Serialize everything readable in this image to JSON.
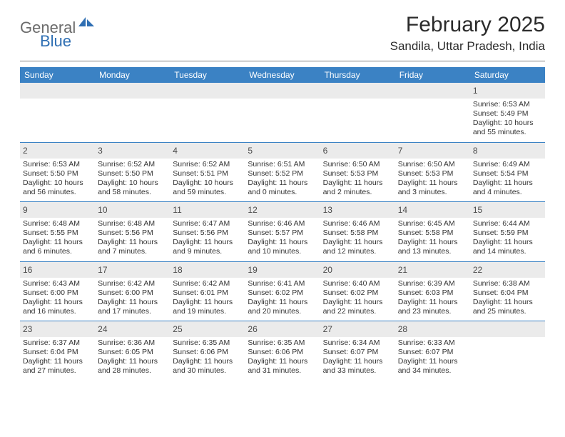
{
  "logo": {
    "word1": "General",
    "word2": "Blue",
    "text_color": "#6b6b6b",
    "accent_color": "#2f6fb3"
  },
  "header": {
    "month_title": "February 2025",
    "location": "Sandila, Uttar Pradesh, India"
  },
  "colors": {
    "header_bar": "#3b82c4",
    "daynum_bg": "#ebebeb",
    "week_divider": "#3b82c4",
    "rule": "#808080",
    "text": "#333333"
  },
  "day_names": [
    "Sunday",
    "Monday",
    "Tuesday",
    "Wednesday",
    "Thursday",
    "Friday",
    "Saturday"
  ],
  "weeks": [
    [
      {
        "blank": true
      },
      {
        "blank": true
      },
      {
        "blank": true
      },
      {
        "blank": true
      },
      {
        "blank": true
      },
      {
        "blank": true
      },
      {
        "day": "1",
        "sunrise": "Sunrise: 6:53 AM",
        "sunset": "Sunset: 5:49 PM",
        "day_a": "Daylight: 10 hours",
        "day_b": "and 55 minutes."
      }
    ],
    [
      {
        "day": "2",
        "sunrise": "Sunrise: 6:53 AM",
        "sunset": "Sunset: 5:50 PM",
        "day_a": "Daylight: 10 hours",
        "day_b": "and 56 minutes."
      },
      {
        "day": "3",
        "sunrise": "Sunrise: 6:52 AM",
        "sunset": "Sunset: 5:50 PM",
        "day_a": "Daylight: 10 hours",
        "day_b": "and 58 minutes."
      },
      {
        "day": "4",
        "sunrise": "Sunrise: 6:52 AM",
        "sunset": "Sunset: 5:51 PM",
        "day_a": "Daylight: 10 hours",
        "day_b": "and 59 minutes."
      },
      {
        "day": "5",
        "sunrise": "Sunrise: 6:51 AM",
        "sunset": "Sunset: 5:52 PM",
        "day_a": "Daylight: 11 hours",
        "day_b": "and 0 minutes."
      },
      {
        "day": "6",
        "sunrise": "Sunrise: 6:50 AM",
        "sunset": "Sunset: 5:53 PM",
        "day_a": "Daylight: 11 hours",
        "day_b": "and 2 minutes."
      },
      {
        "day": "7",
        "sunrise": "Sunrise: 6:50 AM",
        "sunset": "Sunset: 5:53 PM",
        "day_a": "Daylight: 11 hours",
        "day_b": "and 3 minutes."
      },
      {
        "day": "8",
        "sunrise": "Sunrise: 6:49 AM",
        "sunset": "Sunset: 5:54 PM",
        "day_a": "Daylight: 11 hours",
        "day_b": "and 4 minutes."
      }
    ],
    [
      {
        "day": "9",
        "sunrise": "Sunrise: 6:48 AM",
        "sunset": "Sunset: 5:55 PM",
        "day_a": "Daylight: 11 hours",
        "day_b": "and 6 minutes."
      },
      {
        "day": "10",
        "sunrise": "Sunrise: 6:48 AM",
        "sunset": "Sunset: 5:56 PM",
        "day_a": "Daylight: 11 hours",
        "day_b": "and 7 minutes."
      },
      {
        "day": "11",
        "sunrise": "Sunrise: 6:47 AM",
        "sunset": "Sunset: 5:56 PM",
        "day_a": "Daylight: 11 hours",
        "day_b": "and 9 minutes."
      },
      {
        "day": "12",
        "sunrise": "Sunrise: 6:46 AM",
        "sunset": "Sunset: 5:57 PM",
        "day_a": "Daylight: 11 hours",
        "day_b": "and 10 minutes."
      },
      {
        "day": "13",
        "sunrise": "Sunrise: 6:46 AM",
        "sunset": "Sunset: 5:58 PM",
        "day_a": "Daylight: 11 hours",
        "day_b": "and 12 minutes."
      },
      {
        "day": "14",
        "sunrise": "Sunrise: 6:45 AM",
        "sunset": "Sunset: 5:58 PM",
        "day_a": "Daylight: 11 hours",
        "day_b": "and 13 minutes."
      },
      {
        "day": "15",
        "sunrise": "Sunrise: 6:44 AM",
        "sunset": "Sunset: 5:59 PM",
        "day_a": "Daylight: 11 hours",
        "day_b": "and 14 minutes."
      }
    ],
    [
      {
        "day": "16",
        "sunrise": "Sunrise: 6:43 AM",
        "sunset": "Sunset: 6:00 PM",
        "day_a": "Daylight: 11 hours",
        "day_b": "and 16 minutes."
      },
      {
        "day": "17",
        "sunrise": "Sunrise: 6:42 AM",
        "sunset": "Sunset: 6:00 PM",
        "day_a": "Daylight: 11 hours",
        "day_b": "and 17 minutes."
      },
      {
        "day": "18",
        "sunrise": "Sunrise: 6:42 AM",
        "sunset": "Sunset: 6:01 PM",
        "day_a": "Daylight: 11 hours",
        "day_b": "and 19 minutes."
      },
      {
        "day": "19",
        "sunrise": "Sunrise: 6:41 AM",
        "sunset": "Sunset: 6:02 PM",
        "day_a": "Daylight: 11 hours",
        "day_b": "and 20 minutes."
      },
      {
        "day": "20",
        "sunrise": "Sunrise: 6:40 AM",
        "sunset": "Sunset: 6:02 PM",
        "day_a": "Daylight: 11 hours",
        "day_b": "and 22 minutes."
      },
      {
        "day": "21",
        "sunrise": "Sunrise: 6:39 AM",
        "sunset": "Sunset: 6:03 PM",
        "day_a": "Daylight: 11 hours",
        "day_b": "and 23 minutes."
      },
      {
        "day": "22",
        "sunrise": "Sunrise: 6:38 AM",
        "sunset": "Sunset: 6:04 PM",
        "day_a": "Daylight: 11 hours",
        "day_b": "and 25 minutes."
      }
    ],
    [
      {
        "day": "23",
        "sunrise": "Sunrise: 6:37 AM",
        "sunset": "Sunset: 6:04 PM",
        "day_a": "Daylight: 11 hours",
        "day_b": "and 27 minutes."
      },
      {
        "day": "24",
        "sunrise": "Sunrise: 6:36 AM",
        "sunset": "Sunset: 6:05 PM",
        "day_a": "Daylight: 11 hours",
        "day_b": "and 28 minutes."
      },
      {
        "day": "25",
        "sunrise": "Sunrise: 6:35 AM",
        "sunset": "Sunset: 6:06 PM",
        "day_a": "Daylight: 11 hours",
        "day_b": "and 30 minutes."
      },
      {
        "day": "26",
        "sunrise": "Sunrise: 6:35 AM",
        "sunset": "Sunset: 6:06 PM",
        "day_a": "Daylight: 11 hours",
        "day_b": "and 31 minutes."
      },
      {
        "day": "27",
        "sunrise": "Sunrise: 6:34 AM",
        "sunset": "Sunset: 6:07 PM",
        "day_a": "Daylight: 11 hours",
        "day_b": "and 33 minutes."
      },
      {
        "day": "28",
        "sunrise": "Sunrise: 6:33 AM",
        "sunset": "Sunset: 6:07 PM",
        "day_a": "Daylight: 11 hours",
        "day_b": "and 34 minutes."
      },
      {
        "blank": true
      }
    ]
  ]
}
